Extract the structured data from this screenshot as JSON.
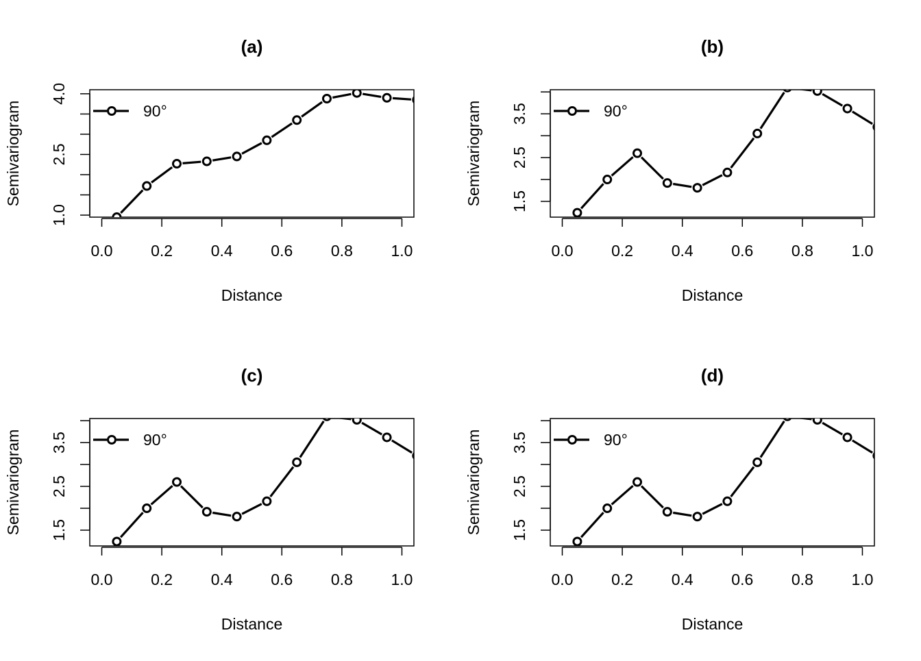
{
  "chart_data": [
    {
      "panel": "a",
      "type": "line",
      "title": "(a)",
      "xlabel": "Distance",
      "ylabel": "Semivariogram",
      "xlim": [
        -0.04,
        1.04
      ],
      "ylim": [
        0.95,
        4.1
      ],
      "xticks": [
        0.0,
        0.2,
        0.4,
        0.6,
        0.8,
        1.0
      ],
      "xtick_labels": [
        "0.0",
        "0.2",
        "0.4",
        "0.6",
        "0.8",
        "1.0"
      ],
      "yticks": [
        1.0,
        1.5,
        2.0,
        2.5,
        3.0,
        3.5,
        4.0
      ],
      "ytick_labels": [
        "1.0",
        "",
        "",
        "2.5",
        "",
        "",
        "4.0"
      ],
      "legend": {
        "label": "90°",
        "position": "top-left"
      },
      "series": [
        {
          "name": "90°",
          "x": [
            0.05,
            0.15,
            0.25,
            0.35,
            0.45,
            0.55,
            0.65,
            0.75,
            0.85,
            0.95,
            1.05
          ],
          "values": [
            0.95,
            1.72,
            2.27,
            2.33,
            2.45,
            2.85,
            3.35,
            3.88,
            4.02,
            3.9,
            3.85
          ]
        }
      ]
    },
    {
      "panel": "b",
      "type": "line",
      "title": "(b)",
      "xlabel": "Distance",
      "ylabel": "Semivariogram",
      "xlim": [
        -0.04,
        1.04
      ],
      "ylim": [
        1.14,
        4.05
      ],
      "xticks": [
        0.0,
        0.2,
        0.4,
        0.6,
        0.8,
        1.0
      ],
      "xtick_labels": [
        "0.0",
        "0.2",
        "0.4",
        "0.6",
        "0.8",
        "1.0"
      ],
      "yticks": [
        1.5,
        2.0,
        2.5,
        3.0,
        3.5,
        4.0
      ],
      "ytick_labels": [
        "1.5",
        "",
        "2.5",
        "",
        "3.5",
        ""
      ],
      "legend": {
        "label": "90°",
        "position": "top-left"
      },
      "series": [
        {
          "name": "90°",
          "x": [
            0.05,
            0.15,
            0.25,
            0.35,
            0.45,
            0.55,
            0.65,
            0.75,
            0.85,
            0.95,
            1.05
          ],
          "values": [
            1.24,
            2.0,
            2.6,
            1.92,
            1.81,
            2.16,
            3.05,
            4.1,
            4.02,
            3.62,
            3.2
          ]
        }
      ]
    },
    {
      "panel": "c",
      "type": "line",
      "title": "(c)",
      "xlabel": "Distance",
      "ylabel": "Semivariogram",
      "xlim": [
        -0.04,
        1.04
      ],
      "ylim": [
        1.14,
        4.05
      ],
      "xticks": [
        0.0,
        0.2,
        0.4,
        0.6,
        0.8,
        1.0
      ],
      "xtick_labels": [
        "0.0",
        "0.2",
        "0.4",
        "0.6",
        "0.8",
        "1.0"
      ],
      "yticks": [
        1.5,
        2.0,
        2.5,
        3.0,
        3.5,
        4.0
      ],
      "ytick_labels": [
        "1.5",
        "",
        "2.5",
        "",
        "3.5",
        ""
      ],
      "legend": {
        "label": "90°",
        "position": "top-left"
      },
      "series": [
        {
          "name": "90°",
          "x": [
            0.05,
            0.15,
            0.25,
            0.35,
            0.45,
            0.55,
            0.65,
            0.75,
            0.85,
            0.95,
            1.05
          ],
          "values": [
            1.24,
            2.0,
            2.6,
            1.92,
            1.81,
            2.16,
            3.05,
            4.1,
            4.02,
            3.62,
            3.2
          ]
        }
      ]
    },
    {
      "panel": "d",
      "type": "line",
      "title": "(d)",
      "xlabel": "Distance",
      "ylabel": "Semivariogram",
      "xlim": [
        -0.04,
        1.04
      ],
      "ylim": [
        1.14,
        4.05
      ],
      "xticks": [
        0.0,
        0.2,
        0.4,
        0.6,
        0.8,
        1.0
      ],
      "xtick_labels": [
        "0.0",
        "0.2",
        "0.4",
        "0.6",
        "0.8",
        "1.0"
      ],
      "yticks": [
        1.5,
        2.0,
        2.5,
        3.0,
        3.5,
        4.0
      ],
      "ytick_labels": [
        "1.5",
        "",
        "2.5",
        "",
        "3.5",
        ""
      ],
      "legend": {
        "label": "90°",
        "position": "top-left"
      },
      "series": [
        {
          "name": "90°",
          "x": [
            0.05,
            0.15,
            0.25,
            0.35,
            0.45,
            0.55,
            0.65,
            0.75,
            0.85,
            0.95,
            1.05
          ],
          "values": [
            1.24,
            2.0,
            2.6,
            1.92,
            1.81,
            2.16,
            3.05,
            4.1,
            4.02,
            3.62,
            3.2
          ]
        }
      ]
    }
  ]
}
